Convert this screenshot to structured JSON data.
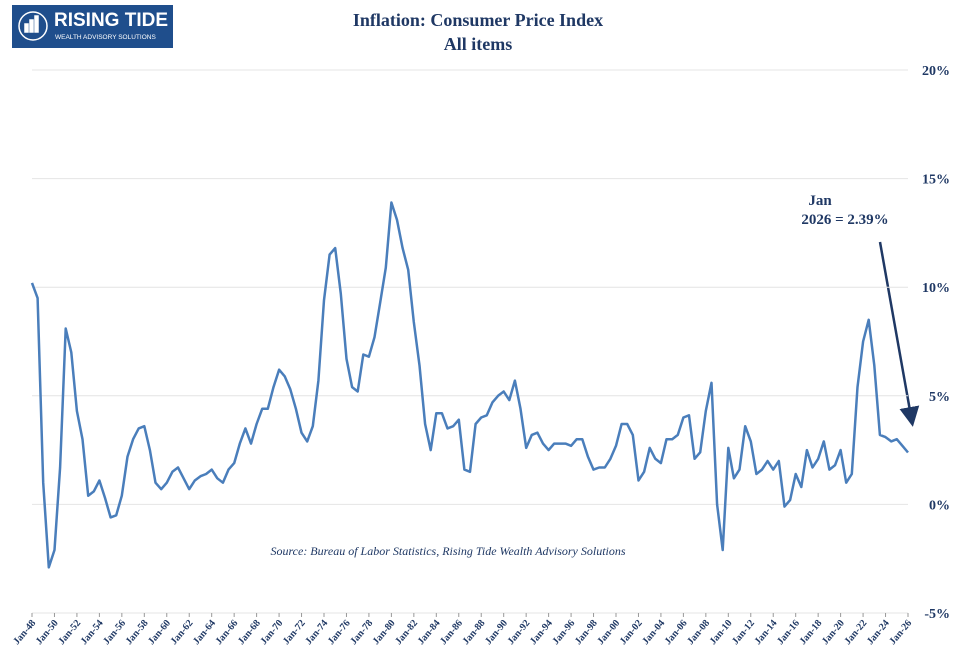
{
  "logo": {
    "name": "RISING TIDE",
    "tagline": "WEALTH ADVISORY SOLUTIONS"
  },
  "chart_data": {
    "type": "line",
    "title": "Inflation: Consumer Price Index",
    "subtitle": "All items",
    "annotation": {
      "line1": "Jan",
      "line2": "2026 = 2.39%"
    },
    "source": "Source:  Bureau of Labor Statistics, Rising Tide Wealth Advisory Solutions",
    "x": [
      1948,
      1948.5,
      1949,
      1949.5,
      1950,
      1950.5,
      1951,
      1951.5,
      1952,
      1952.5,
      1953,
      1953.5,
      1954,
      1954.5,
      1955,
      1955.5,
      1956,
      1956.5,
      1957,
      1957.5,
      1958,
      1958.5,
      1959,
      1959.5,
      1960,
      1960.5,
      1961,
      1961.5,
      1962,
      1962.5,
      1963,
      1963.5,
      1964,
      1964.5,
      1965,
      1965.5,
      1966,
      1966.5,
      1967,
      1967.5,
      1968,
      1968.5,
      1969,
      1969.5,
      1970,
      1970.5,
      1971,
      1971.5,
      1972,
      1972.5,
      1973,
      1973.5,
      1974,
      1974.5,
      1975,
      1975.5,
      1976,
      1976.5,
      1977,
      1977.5,
      1978,
      1978.5,
      1979,
      1979.5,
      1980,
      1980.5,
      1981,
      1981.5,
      1982,
      1982.5,
      1983,
      1983.5,
      1984,
      1984.5,
      1985,
      1985.5,
      1986,
      1986.5,
      1987,
      1987.5,
      1988,
      1988.5,
      1989,
      1989.5,
      1990,
      1990.5,
      1991,
      1991.5,
      1992,
      1992.5,
      1993,
      1993.5,
      1994,
      1994.5,
      1995,
      1995.5,
      1996,
      1996.5,
      1997,
      1997.5,
      1998,
      1998.5,
      1999,
      1999.5,
      2000,
      2000.5,
      2001,
      2001.5,
      2002,
      2002.5,
      2003,
      2003.5,
      2004,
      2004.5,
      2005,
      2005.5,
      2006,
      2006.5,
      2007,
      2007.5,
      2008,
      2008.5,
      2009,
      2009.5,
      2010,
      2010.5,
      2011,
      2011.5,
      2012,
      2012.5,
      2013,
      2013.5,
      2014,
      2014.5,
      2015,
      2015.5,
      2016,
      2016.5,
      2017,
      2017.5,
      2018,
      2018.5,
      2019,
      2019.5,
      2020,
      2020.5,
      2021,
      2021.5,
      2022,
      2022.5,
      2023,
      2023.5,
      2024,
      2024.5,
      2025,
      2025.5,
      2026
    ],
    "series": [
      {
        "name": "CPI YoY",
        "color": "#4a7ebb",
        "values": [
          10.2,
          9.5,
          1.0,
          -2.9,
          -2.1,
          1.7,
          8.1,
          7.0,
          4.3,
          3.0,
          0.4,
          0.6,
          1.1,
          0.3,
          -0.6,
          -0.5,
          0.4,
          2.2,
          3.0,
          3.5,
          3.6,
          2.5,
          1.0,
          0.7,
          1.0,
          1.5,
          1.7,
          1.2,
          0.7,
          1.1,
          1.3,
          1.4,
          1.6,
          1.2,
          1.0,
          1.6,
          1.9,
          2.8,
          3.5,
          2.8,
          3.7,
          4.4,
          4.4,
          5.4,
          6.2,
          5.9,
          5.3,
          4.4,
          3.3,
          2.9,
          3.6,
          5.7,
          9.4,
          11.5,
          11.8,
          9.7,
          6.7,
          5.4,
          5.2,
          6.9,
          6.8,
          7.7,
          9.3,
          10.9,
          13.9,
          13.1,
          11.8,
          10.8,
          8.4,
          6.4,
          3.7,
          2.5,
          4.2,
          4.2,
          3.5,
          3.6,
          3.9,
          1.6,
          1.5,
          3.7,
          4.0,
          4.1,
          4.7,
          5.0,
          5.2,
          4.8,
          5.7,
          4.4,
          2.6,
          3.2,
          3.3,
          2.8,
          2.5,
          2.8,
          2.8,
          2.8,
          2.7,
          3.0,
          3.0,
          2.2,
          1.6,
          1.7,
          1.7,
          2.1,
          2.7,
          3.7,
          3.7,
          3.2,
          1.1,
          1.5,
          2.6,
          2.1,
          1.9,
          3.0,
          3.0,
          3.2,
          4.0,
          4.1,
          2.1,
          2.4,
          4.3,
          5.6,
          0.0,
          -2.1,
          2.6,
          1.2,
          1.6,
          3.6,
          2.9,
          1.4,
          1.6,
          2.0,
          1.6,
          2.0,
          -0.1,
          0.2,
          1.4,
          0.8,
          2.5,
          1.7,
          2.1,
          2.9,
          1.6,
          1.8,
          2.5,
          1.0,
          1.4,
          5.4,
          7.5,
          8.5,
          6.4,
          3.2,
          3.1,
          2.9,
          3.0,
          2.7,
          2.39
        ]
      }
    ],
    "xlim": [
      1948,
      2026
    ],
    "xticks": [
      {
        "value": 1948,
        "label": "Jan-48"
      },
      {
        "value": 1950,
        "label": "Jan-50"
      },
      {
        "value": 1952,
        "label": "Jan-52"
      },
      {
        "value": 1954,
        "label": "Jan-54"
      },
      {
        "value": 1956,
        "label": "Jan-56"
      },
      {
        "value": 1958,
        "label": "Jan-58"
      },
      {
        "value": 1960,
        "label": "Jan-60"
      },
      {
        "value": 1962,
        "label": "Jan-62"
      },
      {
        "value": 1964,
        "label": "Jan-64"
      },
      {
        "value": 1966,
        "label": "Jan-66"
      },
      {
        "value": 1968,
        "label": "Jan-68"
      },
      {
        "value": 1970,
        "label": "Jan-70"
      },
      {
        "value": 1972,
        "label": "Jan-72"
      },
      {
        "value": 1974,
        "label": "Jan-74"
      },
      {
        "value": 1976,
        "label": "Jan-76"
      },
      {
        "value": 1978,
        "label": "Jan-78"
      },
      {
        "value": 1980,
        "label": "Jan-80"
      },
      {
        "value": 1982,
        "label": "Jan-82"
      },
      {
        "value": 1984,
        "label": "Jan-84"
      },
      {
        "value": 1986,
        "label": "Jan-86"
      },
      {
        "value": 1988,
        "label": "Jan-88"
      },
      {
        "value": 1990,
        "label": "Jan-90"
      },
      {
        "value": 1992,
        "label": "Jan-92"
      },
      {
        "value": 1994,
        "label": "Jan-94"
      },
      {
        "value": 1996,
        "label": "Jan-96"
      },
      {
        "value": 1998,
        "label": "Jan-98"
      },
      {
        "value": 2000,
        "label": "Jan-00"
      },
      {
        "value": 2002,
        "label": "Jan-02"
      },
      {
        "value": 2004,
        "label": "Jan-04"
      },
      {
        "value": 2006,
        "label": "Jan-06"
      },
      {
        "value": 2008,
        "label": "Jan-08"
      },
      {
        "value": 2010,
        "label": "Jan-10"
      },
      {
        "value": 2012,
        "label": "Jan-12"
      },
      {
        "value": 2014,
        "label": "Jan-14"
      },
      {
        "value": 2016,
        "label": "Jan-16"
      },
      {
        "value": 2018,
        "label": "Jan-18"
      },
      {
        "value": 2020,
        "label": "Jan-20"
      },
      {
        "value": 2022,
        "label": "Jan-22"
      },
      {
        "value": 2024,
        "label": "Jan-24"
      },
      {
        "value": 2026,
        "label": "Jan-26"
      }
    ],
    "ylim": [
      -5,
      20
    ],
    "yticks": [
      {
        "value": -5,
        "label": "-5%"
      },
      {
        "value": 0,
        "label": "0%"
      },
      {
        "value": 5,
        "label": "5%"
      },
      {
        "value": 10,
        "label": "10%"
      },
      {
        "value": 15,
        "label": "15%"
      },
      {
        "value": 20,
        "label": "20%"
      }
    ],
    "grid": true
  }
}
